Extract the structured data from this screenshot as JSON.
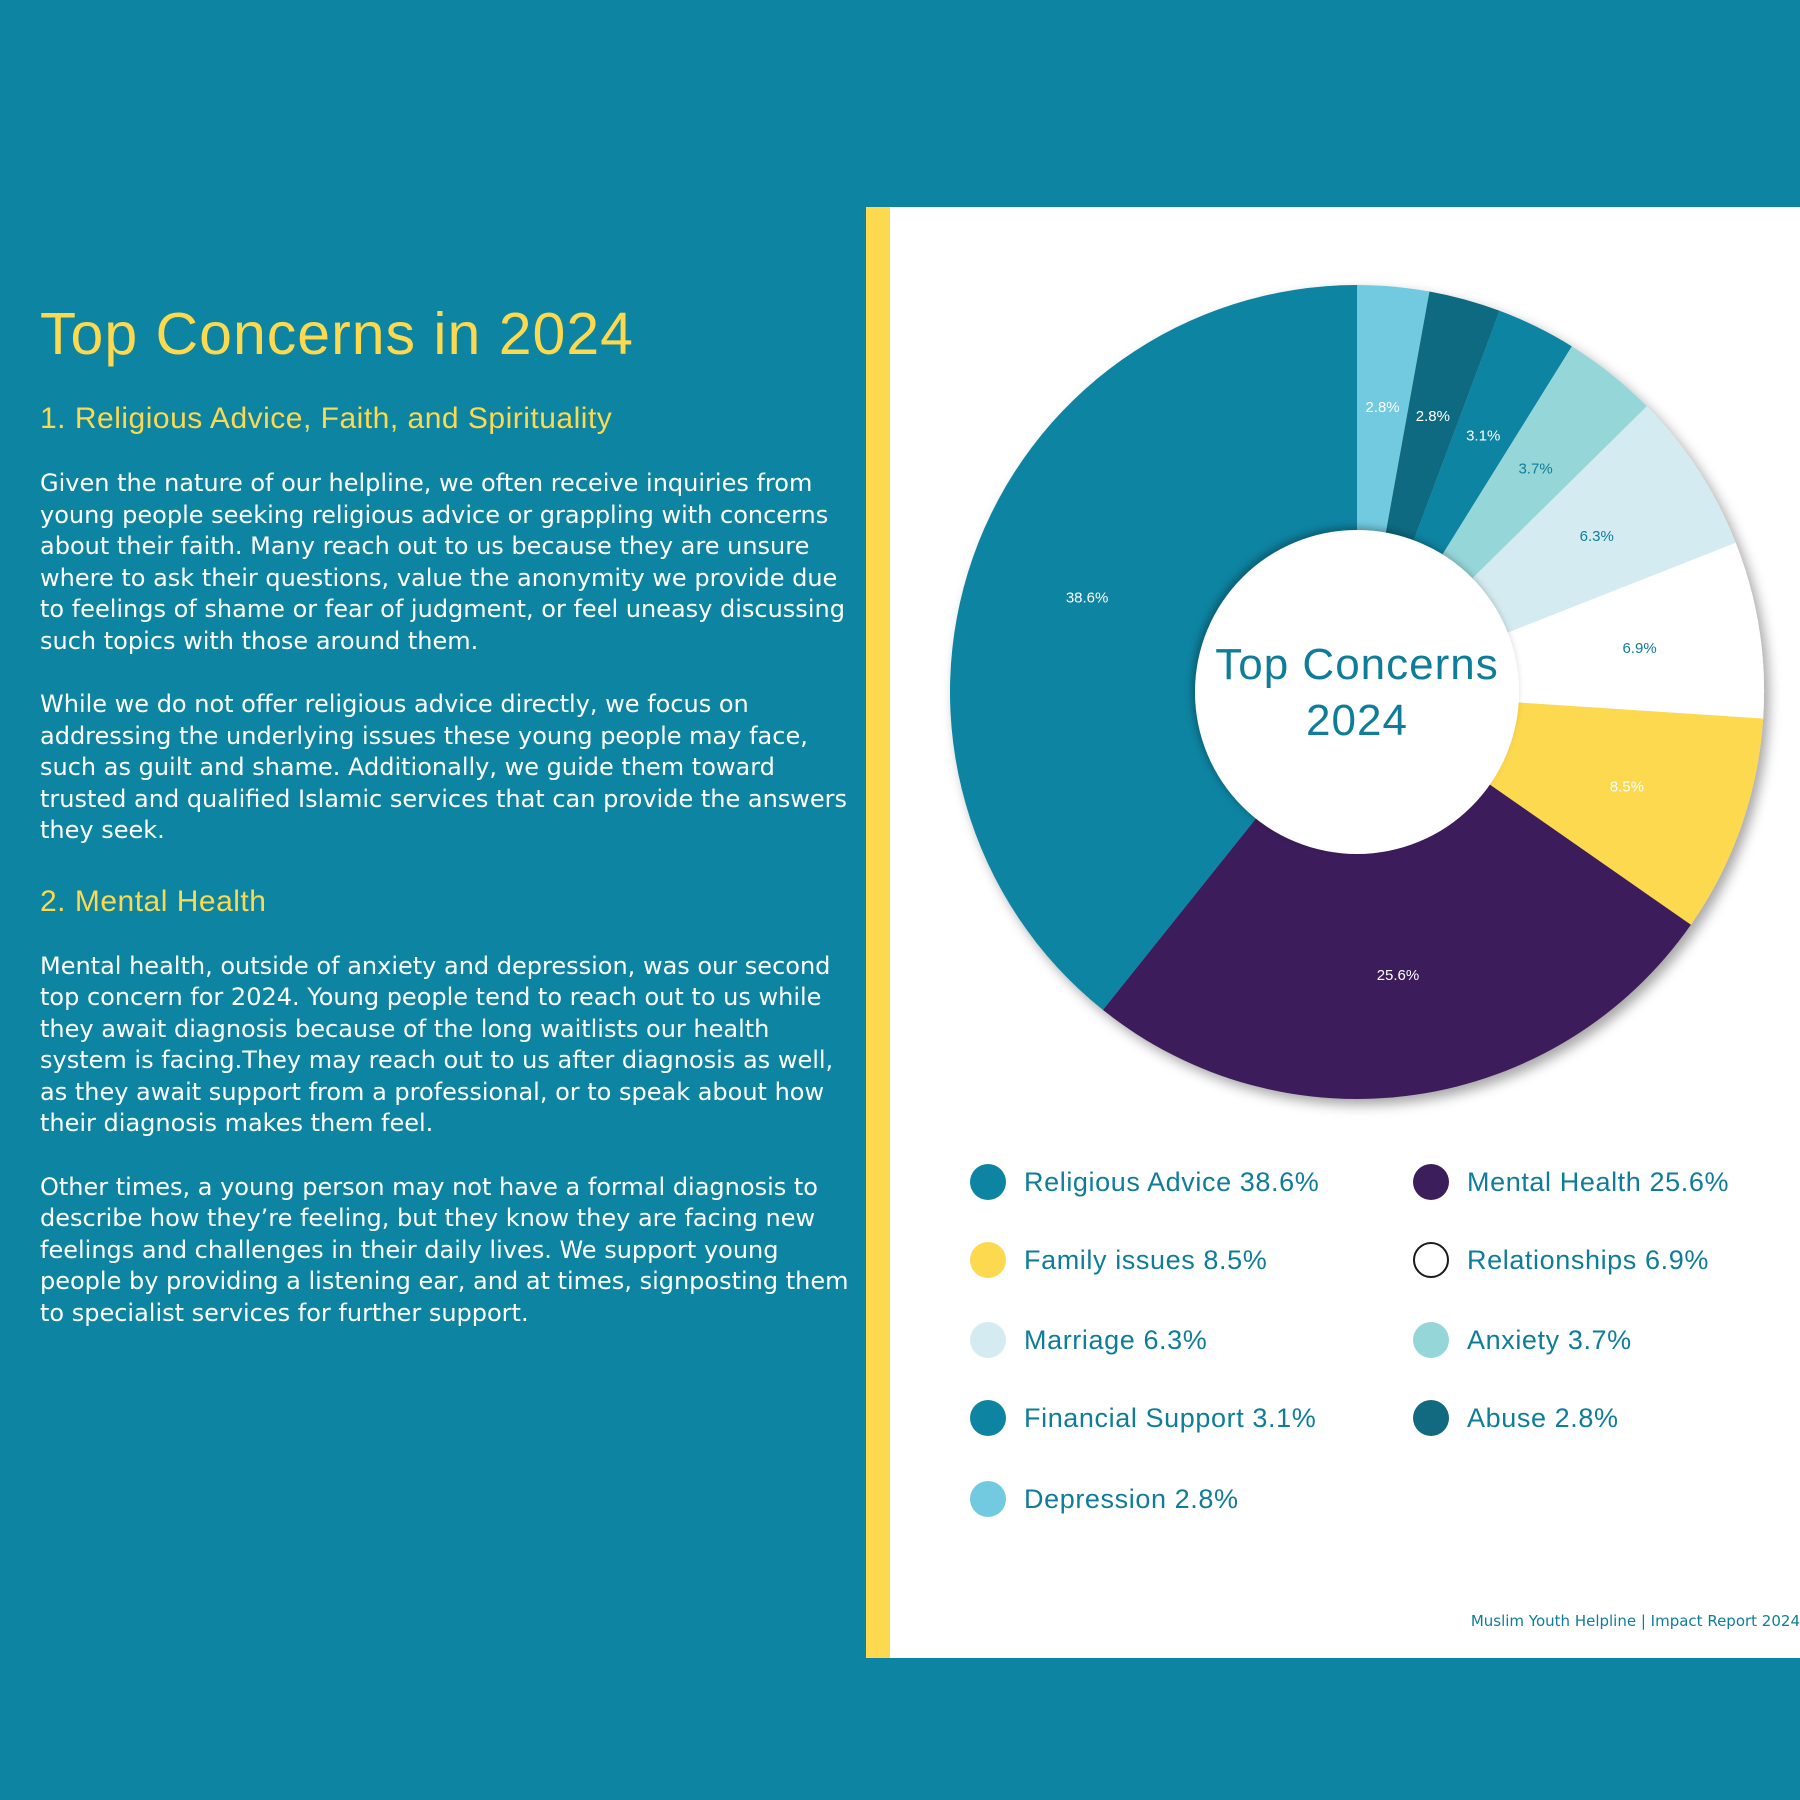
{
  "page": {
    "title": "Top Concerns in 2024",
    "section1_heading": "1. Religious Advice, Faith, and Spirituality",
    "section1_p1": "Given the nature of our helpline, we often receive inquiries from young people seeking religious advice or grappling with concerns about their faith. Many reach out to us because they are unsure where to ask their questions, value the anonymity we provide due to feelings of shame or fear of judgment, or feel uneasy discussing such topics with those around them.",
    "section1_p2": "While we do not offer religious advice directly, we focus on addressing the underlying issues these young people may face, such as guilt and shame. Additionally, we guide them toward trusted and qualified Islamic services that can provide the answers they seek.",
    "section2_heading": "2. Mental Health",
    "section2_p1": "Mental health, outside of anxiety and depression, was our second top concern for 2024. Young people tend to reach out to us while they await diagnosis because of the long waitlists our health system is facing.They may reach out to us after diagnosis as well, as they await support from a professional, or to speak about how their diagnosis makes them feel.",
    "section2_p2": "Other times, a young person may not have a formal diagnosis to describe how they’re feeling, but they know they are facing new feelings and challenges in their daily lives. We support young people by providing a listening ear, and at times, signposting them to specialist services for further support.",
    "footer": "Muslim Youth Helpline | Impact Report 2024"
  },
  "colors": {
    "background": "#0d84a2",
    "accent_yellow": "#fdd94f",
    "panel": "#ffffff",
    "text_teal": "#0f7d9a"
  },
  "chart_data": {
    "type": "donut",
    "center_label_line1": "Top Concerns",
    "center_label_line2": "2024",
    "slices": [
      {
        "name": "Depression",
        "value": 2.8,
        "label": "2.8%",
        "color": "#72cae0",
        "label_color": "#ffffff",
        "legend": "Depression 2.8%"
      },
      {
        "name": "Abuse",
        "value": 2.8,
        "label": "2.8%",
        "color": "#116a80",
        "label_color": "#ffffff",
        "legend": "Abuse 2.8%"
      },
      {
        "name": "Financial Support",
        "value": 3.1,
        "label": "3.1%",
        "color": "#0d84a2",
        "label_color": "#ffffff",
        "legend": "Financial Support 3.1%"
      },
      {
        "name": "Anxiety",
        "value": 3.7,
        "label": "3.7%",
        "color": "#95d6d9",
        "label_color": "#0f7d9a",
        "legend": "Anxiety 3.7%"
      },
      {
        "name": "Marriage",
        "value": 6.3,
        "label": "6.3%",
        "color": "#d4ecf1",
        "label_color": "#0f7d9a",
        "legend": "Marriage 6.3%"
      },
      {
        "name": "Relationships",
        "value": 6.9,
        "label": "6.9%",
        "color": "#ffffff",
        "label_color": "#0f7d9a",
        "legend": "Relationships 6.9%"
      },
      {
        "name": "Family issues",
        "value": 8.5,
        "label": "8.5%",
        "color": "#fdd94f",
        "label_color": "#ffffff",
        "legend": "Family issues 8.5%"
      },
      {
        "name": "Mental Health",
        "value": 25.6,
        "label": "25.6%",
        "color": "#3d1e5c",
        "label_color": "#ffffff",
        "legend": "Mental Health 25.6%"
      },
      {
        "name": "Religious Advice",
        "value": 38.6,
        "label": "38.6%",
        "color": "#0d84a2",
        "label_color": "#ffffff",
        "legend": "Religious Advice 38.6%"
      }
    ],
    "legend_order": [
      "Religious Advice",
      "Mental Health",
      "Family issues",
      "Relationships",
      "Marriage",
      "Anxiety",
      "Financial Support",
      "Abuse",
      "Depression"
    ]
  }
}
